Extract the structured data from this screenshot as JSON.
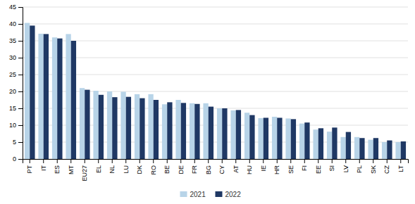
{
  "chart_data": {
    "type": "bar",
    "categories": [
      "PT",
      "IT",
      "ES",
      "MT",
      "EU27",
      "EL",
      "NL",
      "LU",
      "DK",
      "RO",
      "BE",
      "DE",
      "FR",
      "BG",
      "CY",
      "AT",
      "HU",
      "IE",
      "HR",
      "SE",
      "FI",
      "EE",
      "SI",
      "LV",
      "PL",
      "SK",
      "CZ",
      "LT"
    ],
    "series": [
      {
        "name": "2021",
        "color": "#b8d4e8",
        "values": [
          40.3,
          37.1,
          36.0,
          37.0,
          21.0,
          20.2,
          20.0,
          19.9,
          19.2,
          19.2,
          16.2,
          17.5,
          16.5,
          16.5,
          15.0,
          14.4,
          13.7,
          12.1,
          12.5,
          12.0,
          10.5,
          8.7,
          8.1,
          6.5,
          6.5,
          5.7,
          5.0,
          5.0
        ]
      },
      {
        "name": "2022",
        "color": "#1f3864",
        "values": [
          39.5,
          37.0,
          35.7,
          35.0,
          20.5,
          19.0,
          18.3,
          18.4,
          18.0,
          17.5,
          16.8,
          16.6,
          16.3,
          15.5,
          15.0,
          14.5,
          13.0,
          12.2,
          12.2,
          11.8,
          10.8,
          9.1,
          9.3,
          8.0,
          6.2,
          6.2,
          5.5,
          5.2
        ]
      }
    ],
    "ylim": [
      0,
      45
    ],
    "yticks": [
      0,
      5,
      10,
      15,
      20,
      25,
      30,
      35,
      40,
      45
    ],
    "grid": true,
    "legend": "bottom"
  }
}
